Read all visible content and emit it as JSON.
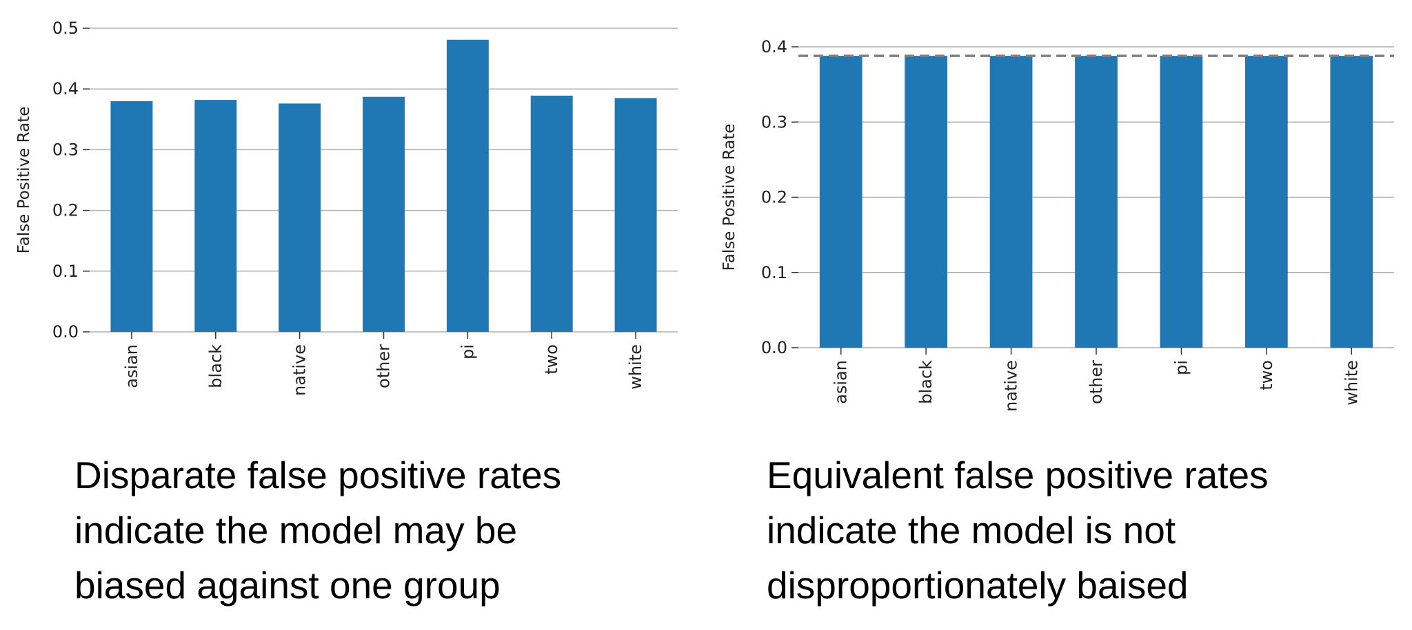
{
  "chart_data": [
    {
      "type": "bar",
      "categories": [
        "asian",
        "black",
        "native",
        "other",
        "pi",
        "two",
        "white"
      ],
      "values": [
        0.38,
        0.382,
        0.376,
        0.387,
        0.481,
        0.389,
        0.385
      ],
      "ylabel": "False Positive Rate",
      "ylim": [
        0,
        0.5
      ],
      "yticks": [
        "0.0",
        "0.1",
        "0.2",
        "0.3",
        "0.4",
        "0.5"
      ],
      "grid": "horizontal",
      "color": "#1f77b4"
    },
    {
      "type": "bar",
      "categories": [
        "asian",
        "black",
        "native",
        "other",
        "pi",
        "two",
        "white"
      ],
      "values": [
        0.388,
        0.388,
        0.388,
        0.388,
        0.388,
        0.388,
        0.388
      ],
      "reference_line": 0.388,
      "ylabel": "False Positive Rate",
      "ylim": [
        0,
        0.4
      ],
      "yticks": [
        "0.0",
        "0.1",
        "0.2",
        "0.3",
        "0.4"
      ],
      "grid": "horizontal",
      "color": "#1f77b4"
    }
  ],
  "captions": {
    "left": [
      "Disparate false positive rates",
      "indicate the model may be",
      "biased against one group"
    ],
    "right": [
      "Equivalent false positive rates",
      "indicate the model is not",
      "disproportionately baised"
    ]
  }
}
